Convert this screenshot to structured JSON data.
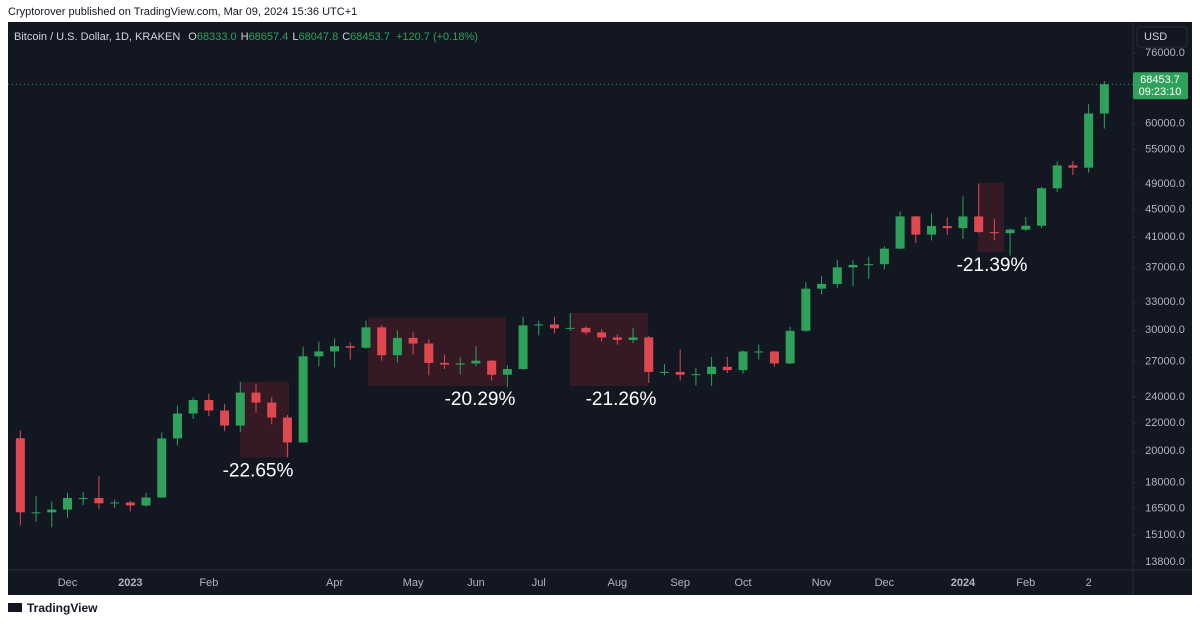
{
  "header": {
    "text": "Cryptorover published on TradingView.com, Mar 09, 2024 15:36 UTC+1"
  },
  "footer": {
    "brand": "TradingView"
  },
  "chart_data": {
    "type": "candlestick",
    "title": "Bitcoin / U.S. Dollar, 1D, KRAKEN",
    "legend_values": [
      {
        "key": "O",
        "text": "68333.0"
      },
      {
        "key": "H",
        "text": "68657.4"
      },
      {
        "key": "L",
        "text": "68047.8"
      },
      {
        "key": "C",
        "text": "68453.7"
      }
    ],
    "change": "+120.7 (+0.18%)",
    "currency": "USD",
    "up_color": "#2ea25a",
    "down_color": "#e0484f",
    "log_scale": true,
    "ylim": [
      13525,
      84330
    ],
    "yticks": [
      {
        "value": 76000,
        "label": "76000.0"
      },
      {
        "value": 60000,
        "label": "60000.0"
      },
      {
        "value": 55000,
        "label": "55000.0"
      },
      {
        "value": 49000,
        "label": "49000.0"
      },
      {
        "value": 45000,
        "label": "45000.0"
      },
      {
        "value": 41000,
        "label": "41000.0"
      },
      {
        "value": 37000,
        "label": "37000.0"
      },
      {
        "value": 33000,
        "label": "33000.0"
      },
      {
        "value": 30000,
        "label": "30000.0"
      },
      {
        "value": 27000,
        "label": "27000.0"
      },
      {
        "value": 24000,
        "label": "24000.0"
      },
      {
        "value": 22000,
        "label": "22000.0"
      },
      {
        "value": 20000,
        "label": "20000.0"
      },
      {
        "value": 18000,
        "label": "18000.0"
      },
      {
        "value": 16500,
        "label": "16500.0"
      },
      {
        "value": 15100,
        "label": "15100.0"
      },
      {
        "value": 13800,
        "label": "13800.0"
      }
    ],
    "categories": [
      null,
      null,
      null,
      "Dec",
      null,
      null,
      null,
      "2023",
      null,
      null,
      null,
      null,
      "Feb",
      null,
      null,
      null,
      null,
      null,
      null,
      null,
      "Apr",
      null,
      null,
      null,
      null,
      "May",
      null,
      null,
      null,
      "Jun",
      null,
      null,
      null,
      "Jul",
      null,
      null,
      null,
      null,
      "Aug",
      null,
      null,
      null,
      "Sep",
      null,
      null,
      null,
      "Oct",
      null,
      null,
      null,
      null,
      "Nov",
      null,
      null,
      null,
      "Dec",
      null,
      null,
      null,
      null,
      "2024",
      null,
      null,
      null,
      "Feb",
      null,
      null,
      null,
      "2",
      null
    ],
    "open": [
      20900,
      16300,
      16300,
      16450,
      17100,
      17100,
      16800,
      16850,
      16680,
      17130,
      20880,
      22700,
      23750,
      22930,
      21800,
      24350,
      23550,
      22400,
      20600,
      27500,
      27950,
      28450,
      28300,
      30300,
      27600,
      29250,
      28700,
      26900,
      26750,
      26850,
      27100,
      25850,
      26350,
      30500,
      30600,
      30200,
      30250,
      29800,
      29300,
      29050,
      29300,
      26100,
      26100,
      25850,
      25900,
      26550,
      26250,
      27950,
      27950,
      26850,
      29950,
      34500,
      35050,
      37050,
      37350,
      37450,
      39450,
      43950,
      41350,
      42550,
      42250,
      43950,
      41700,
      41550,
      42050,
      42600,
      48300,
      52150,
      51750,
      62050
    ],
    "high": [
      21450,
      17200,
      16900,
      17400,
      17450,
      18400,
      17000,
      16950,
      17400,
      21300,
      23300,
      23950,
      24250,
      23450,
      25250,
      25100,
      24000,
      22600,
      28400,
      28900,
      29200,
      28800,
      31000,
      30500,
      30000,
      29800,
      29100,
      27650,
      27400,
      28450,
      27150,
      26700,
      31400,
      31000,
      31400,
      31800,
      30400,
      30100,
      29600,
      30250,
      29450,
      26800,
      28150,
      26450,
      27450,
      27450,
      28050,
      28600,
      28000,
      30350,
      35250,
      35950,
      38000,
      37950,
      38400,
      39750,
      44700,
      44000,
      44400,
      43800,
      47000,
      49050,
      43550,
      42200,
      43850,
      48550,
      52850,
      52950,
      64000,
      69200
    ],
    "low": [
      15600,
      15800,
      15500,
      16000,
      16700,
      16500,
      16550,
      16350,
      16600,
      17100,
      20400,
      22300,
      22500,
      21400,
      21350,
      22750,
      21900,
      19600,
      20600,
      26600,
      26500,
      27200,
      28200,
      27100,
      26950,
      27650,
      25800,
      26350,
      25900,
      26600,
      25350,
      24800,
      26250,
      29500,
      29700,
      29950,
      29550,
      28900,
      28600,
      28750,
      25150,
      25800,
      25350,
      24950,
      24900,
      26000,
      25950,
      27200,
      26550,
      26800,
      29850,
      33850,
      34600,
      34800,
      35650,
      36800,
      39350,
      40200,
      40550,
      41300,
      40750,
      41600,
      40600,
      38550,
      41850,
      42250,
      47700,
      50500,
      50900,
      59000
    ],
    "close": [
      16300,
      16300,
      16450,
      17100,
      17100,
      16800,
      16850,
      16680,
      17130,
      20880,
      22700,
      23750,
      22930,
      21800,
      24350,
      23550,
      22400,
      20600,
      27500,
      27950,
      28450,
      28300,
      30300,
      27600,
      29250,
      28700,
      26900,
      26750,
      26850,
      27100,
      25850,
      26350,
      30500,
      30600,
      30200,
      30250,
      29800,
      29300,
      29050,
      29300,
      26100,
      26100,
      25850,
      25900,
      26550,
      26250,
      27950,
      27950,
      26850,
      29950,
      34500,
      35050,
      37050,
      37350,
      37450,
      39450,
      43950,
      41350,
      42550,
      42250,
      43950,
      41700,
      41550,
      42050,
      42600,
      48300,
      52150,
      51750,
      62050,
      68453.7
    ],
    "last_price": {
      "value": 68453.7,
      "countdown": "09:23:10"
    },
    "annotations": [
      {
        "text": "-22.65%",
        "high": 25250,
        "low": 19600
      },
      {
        "text": "-20.29%",
        "high": 31300,
        "low": 24900
      },
      {
        "text": "-21.26%",
        "high": 31800,
        "low": 24900
      },
      {
        "text": "-21.39%",
        "high": 49200,
        "low": 39000
      }
    ]
  }
}
